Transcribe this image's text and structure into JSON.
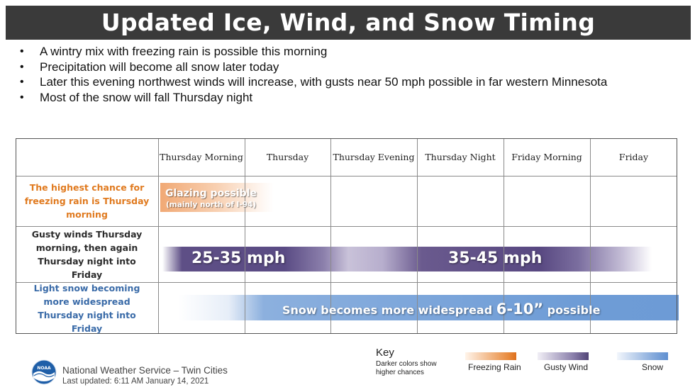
{
  "title": "Updated Ice, Wind, and Snow Timing",
  "bullets": [
    "A wintry mix with freezing rain is possible this morning",
    "Precipitation will become all snow later today",
    "Later this evening northwest winds will increase, with gusts near 50 mph possible in far western Minnesota",
    "Most of the snow will fall Thursday night"
  ],
  "table": {
    "columns": [
      "Thursday Morning",
      "Thursday",
      "Thursday Evening",
      "Thursday Night",
      "Friday Morning",
      "Friday"
    ],
    "rows": [
      {
        "label": "The highest chance for freezing rain is Thursday morning",
        "band_text": "Glazing possible",
        "band_subtext": "(mainly north of I-94)"
      },
      {
        "label": "Gusty winds Thursday morning, then again Thursday night into Friday",
        "band_text_a": "25-35 mph",
        "band_text_b": "35-45 mph"
      },
      {
        "label": "Light snow becoming more widespread Thursday night into Friday",
        "band_text_pre": "Snow becomes more widespread ",
        "band_text_amount": "6-10”",
        "band_text_post": " possible"
      }
    ]
  },
  "key": {
    "title": "Key",
    "note": "Darker colors show higher chances",
    "items": [
      "Freezing Rain",
      "Gusty Wind",
      "Snow"
    ],
    "colors": {
      "freezing_rain": "#dd6f1c",
      "gusty_wind": "#524577",
      "snow": "#5f8fd0"
    }
  },
  "footer": {
    "logo_text": "NOAA",
    "org": "National Weather Service – Twin Cities",
    "updated": "Last updated: 6:11 AM January 14, 2021"
  }
}
